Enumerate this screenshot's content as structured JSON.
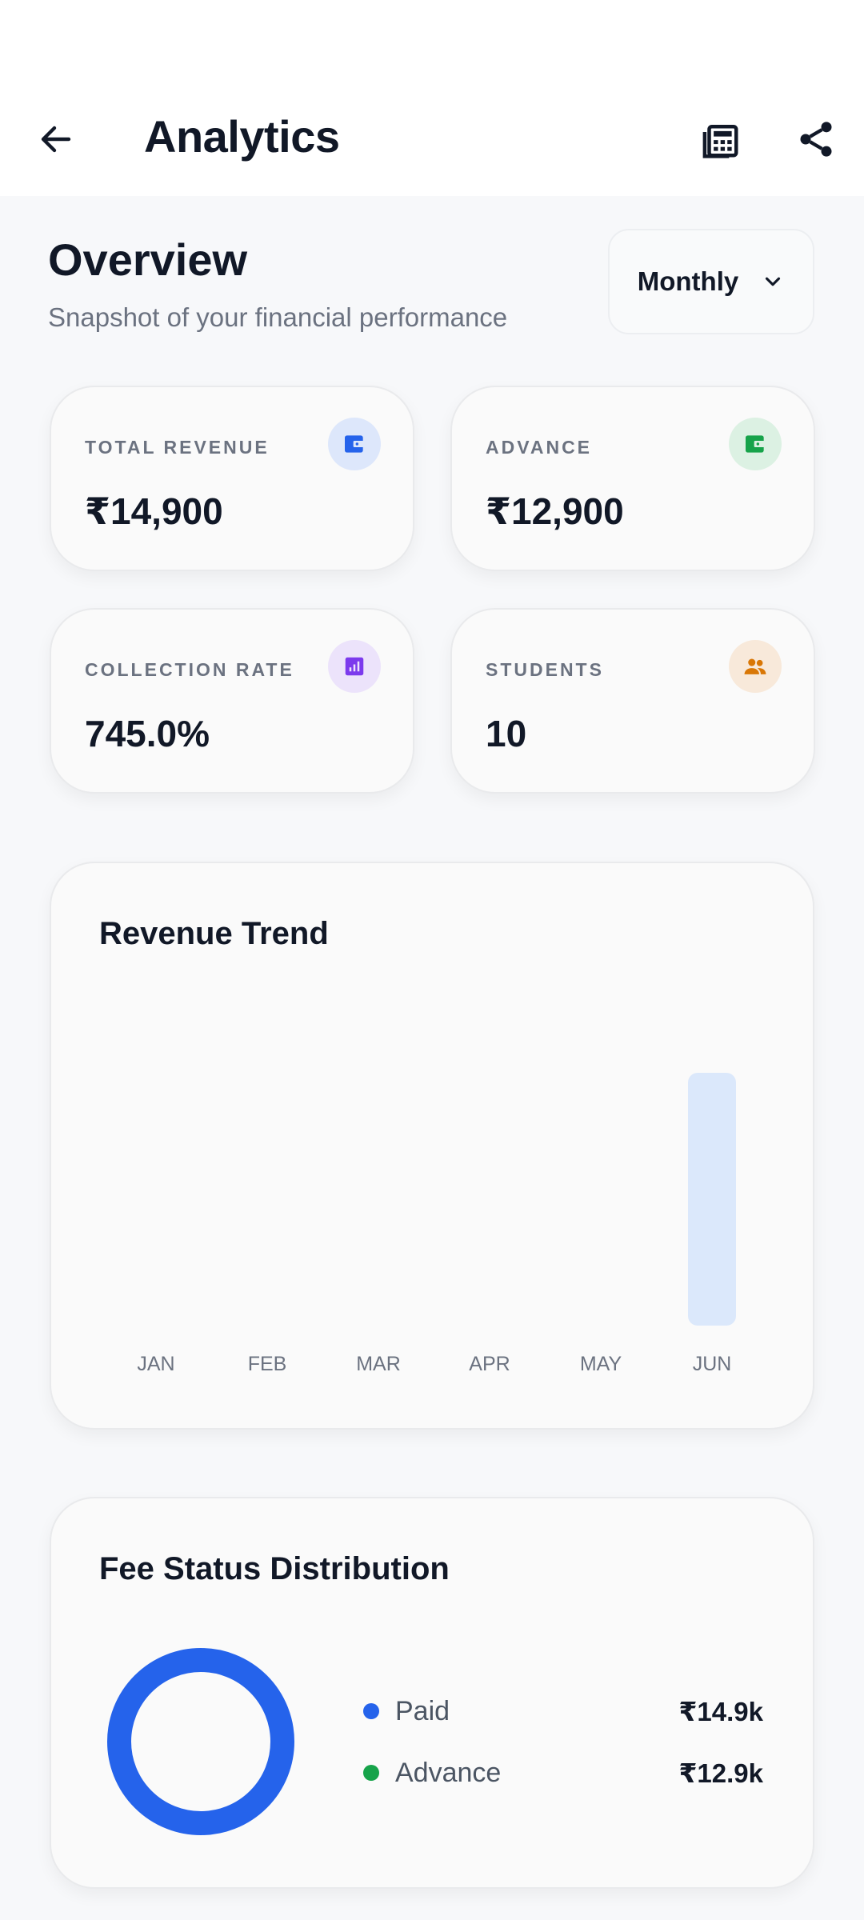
{
  "app_bar": {
    "title": "Analytics",
    "back_icon": "arrow-left-icon",
    "calculator_icon": "calculator-icon",
    "share_icon": "share-icon"
  },
  "overview": {
    "title": "Overview",
    "subtitle": "Snapshot of your financial performance",
    "period": "Monthly",
    "period_icon": "chevron-down-icon"
  },
  "stats": [
    {
      "label": "TOTAL REVENUE",
      "value": "₹14,900",
      "icon": "wallet-icon",
      "color": "#2563eb",
      "bg": "#dde7fb"
    },
    {
      "label": "ADVANCE",
      "value": "₹12,900",
      "icon": "wallet-icon",
      "color": "#16a34a",
      "bg": "#dcf1e3"
    },
    {
      "label": "COLLECTION RATE",
      "value": "745.0%",
      "icon": "bar-chart-icon",
      "color": "#7c3aed",
      "bg": "#ece3fb"
    },
    {
      "label": "STUDENTS",
      "value": "10",
      "icon": "people-icon",
      "color": "#d97706",
      "bg": "#f8e9da"
    }
  ],
  "revenue_trend": {
    "title": "Revenue Trend"
  },
  "chart_data": [
    {
      "type": "bar",
      "title": "Revenue Trend",
      "categories": [
        "JAN",
        "FEB",
        "MAR",
        "APR",
        "MAY",
        "JUN"
      ],
      "values": [
        0,
        0,
        0,
        0,
        0,
        14900
      ],
      "bar_color": "#dbe8fb",
      "grid": false
    },
    {
      "type": "pie",
      "title": "Fee Status Distribution",
      "categories": [
        "Paid",
        "Advance"
      ],
      "values": [
        14900,
        12900
      ],
      "colors": [
        "#2563eb",
        "#16a34a"
      ]
    }
  ],
  "fee_status": {
    "title": "Fee Status Distribution",
    "legend": [
      {
        "label": "Paid",
        "value": "₹14.9k",
        "color": "#2563eb"
      },
      {
        "label": "Advance",
        "value": "₹12.9k",
        "color": "#16a34a"
      }
    ]
  }
}
